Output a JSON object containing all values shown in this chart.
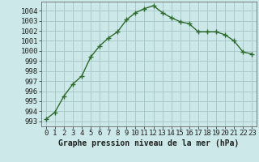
{
  "x": [
    0,
    1,
    2,
    3,
    4,
    5,
    6,
    7,
    8,
    9,
    10,
    11,
    12,
    13,
    14,
    15,
    16,
    17,
    18,
    19,
    20,
    21,
    22,
    23
  ],
  "y": [
    993.2,
    993.9,
    995.5,
    996.7,
    997.5,
    999.4,
    1000.5,
    1001.3,
    1001.9,
    1003.1,
    1003.8,
    1004.2,
    1004.5,
    1003.8,
    1003.3,
    1002.9,
    1002.7,
    1001.9,
    1001.9,
    1001.9,
    1001.6,
    1001.0,
    999.9,
    999.7
  ],
  "line_color": "#2d6a2d",
  "marker": "+",
  "bg_color": "#cce8e8",
  "grid_color": "#aacaca",
  "xlabel": "Graphe pression niveau de la mer (hPa)",
  "xlabel_fontsize": 7,
  "ytick_min": 993,
  "ytick_max": 1004,
  "xtick_min": 0,
  "xtick_max": 23,
  "ylim_min": 992.5,
  "ylim_max": 1004.9,
  "xlim_min": -0.5,
  "xlim_max": 23.5,
  "linewidth": 1.0,
  "markersize": 4,
  "tick_fontsize": 6.5
}
